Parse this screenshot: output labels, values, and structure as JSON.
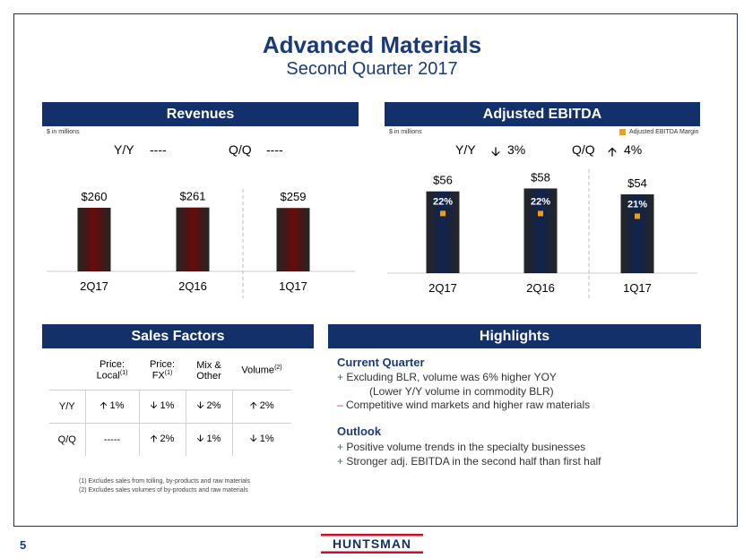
{
  "header": {
    "title": "Advanced Materials",
    "subtitle": "Second Quarter 2017"
  },
  "revenues": {
    "band": "Revenues",
    "units": "$ in millions",
    "yy_label": "Y/Y",
    "yy_value": "----",
    "qq_label": "Q/Q",
    "qq_value": "----"
  },
  "ebitda": {
    "band": "Adjusted EBITDA",
    "units": "$ in millions",
    "legend": "Adjusted EBITDA Margin",
    "yy_label": "Y/Y",
    "yy_value": "3%",
    "yy_dir": "down",
    "qq_label": "Q/Q",
    "qq_value": "4%",
    "qq_dir": "up"
  },
  "chart_data": [
    {
      "type": "bar",
      "title": "Revenues",
      "categories": [
        "2Q17",
        "2Q16",
        "1Q17"
      ],
      "values": [
        260,
        261,
        259
      ],
      "labels": [
        "$260",
        "$261",
        "$259"
      ],
      "ylim": [
        0,
        300
      ],
      "bar_color": "#6b0a0a"
    },
    {
      "type": "bar",
      "title": "Adjusted EBITDA",
      "categories": [
        "2Q17",
        "2Q16",
        "1Q17"
      ],
      "values": [
        56,
        58,
        54
      ],
      "labels": [
        "$56",
        "$58",
        "$54"
      ],
      "margin_labels": [
        "22%",
        "22%",
        "21%"
      ],
      "margin_values": [
        22,
        22,
        21
      ],
      "ylim": [
        0,
        65
      ],
      "bar_color": "#0f2550",
      "margin_color": "#f39c12"
    }
  ],
  "sales_factors": {
    "band": "Sales Factors",
    "columns": [
      {
        "line1": "Price:",
        "line2": "Local",
        "sup": "(1)"
      },
      {
        "line1": "Price:",
        "line2": "FX",
        "sup": "(1)"
      },
      {
        "line1": "Mix &",
        "line2": "Other",
        "sup": ""
      },
      {
        "line1": "Volume",
        "line2": "",
        "sup": "(2)"
      }
    ],
    "rows": [
      {
        "label": "Y/Y",
        "cells": [
          {
            "dir": "up",
            "val": "1%"
          },
          {
            "dir": "down",
            "val": "1%"
          },
          {
            "dir": "down",
            "val": "2%"
          },
          {
            "dir": "up",
            "val": "2%"
          }
        ]
      },
      {
        "label": "Q/Q",
        "cells": [
          {
            "dir": "",
            "val": "-----"
          },
          {
            "dir": "up",
            "val": "2%"
          },
          {
            "dir": "down",
            "val": "1%"
          },
          {
            "dir": "down",
            "val": "1%"
          }
        ]
      }
    ],
    "footnotes": [
      "(1) Excludes sales from tolling, by-products and raw materials",
      "(2) Excludes sales volumes of by-products and raw materials"
    ]
  },
  "highlights": {
    "band": "Highlights",
    "current_head": "Current Quarter",
    "current_1": "Excluding BLR, volume was 6% higher YOY",
    "current_1b": "(Lower Y/Y volume in commodity BLR)",
    "current_2": "Competitive wind markets and higher raw materials",
    "outlook_head": "Outlook",
    "outlook_1": "Positive volume trends in the specialty businesses",
    "outlook_2": "Stronger adj. EBITDA in the second half than first half"
  },
  "footer": {
    "page": "5",
    "logo": "HUNTSMAN"
  }
}
